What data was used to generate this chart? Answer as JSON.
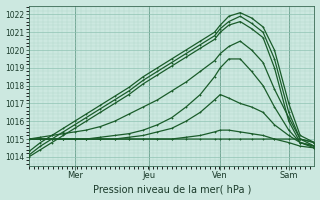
{
  "xlabel": "Pression niveau de la mer( hPa )",
  "bg_color": "#cce8e0",
  "grid_color_minor": "#b0d8cc",
  "grid_color_major": "#90c4b4",
  "line_color": "#1a5c2a",
  "ylim": [
    1013.5,
    1022.5
  ],
  "xlim": [
    0.0,
    1.0
  ],
  "yticks": [
    1014,
    1015,
    1016,
    1017,
    1018,
    1019,
    1020,
    1021,
    1022
  ],
  "day_labels": [
    "Mer",
    "Jeu",
    "Ven",
    "Sam"
  ],
  "day_positions": [
    0.16,
    0.42,
    0.67,
    0.91
  ],
  "series": [
    {
      "x": [
        0.0,
        0.04,
        0.08,
        0.12,
        0.16,
        0.2,
        0.25,
        0.3,
        0.35,
        0.4,
        0.45,
        0.5,
        0.55,
        0.6,
        0.65,
        0.67,
        0.7,
        0.74,
        0.78,
        0.82,
        0.86,
        0.91,
        0.95,
        1.0
      ],
      "y": [
        1014.3,
        1014.8,
        1015.2,
        1015.6,
        1016.0,
        1016.4,
        1016.9,
        1017.4,
        1017.9,
        1018.5,
        1019.0,
        1019.5,
        1020.0,
        1020.5,
        1021.0,
        1021.4,
        1021.9,
        1022.1,
        1021.8,
        1021.3,
        1020.0,
        1017.0,
        1015.2,
        1014.8
      ]
    },
    {
      "x": [
        0.0,
        0.04,
        0.08,
        0.12,
        0.16,
        0.2,
        0.25,
        0.3,
        0.35,
        0.4,
        0.45,
        0.5,
        0.55,
        0.6,
        0.65,
        0.67,
        0.7,
        0.74,
        0.78,
        0.82,
        0.86,
        0.91,
        0.95,
        1.0
      ],
      "y": [
        1014.1,
        1014.6,
        1015.0,
        1015.4,
        1015.8,
        1016.2,
        1016.7,
        1017.2,
        1017.7,
        1018.3,
        1018.8,
        1019.3,
        1019.8,
        1020.3,
        1020.8,
        1021.2,
        1021.6,
        1021.9,
        1021.5,
        1021.0,
        1019.5,
        1016.5,
        1015.0,
        1014.6
      ]
    },
    {
      "x": [
        0.0,
        0.04,
        0.08,
        0.12,
        0.16,
        0.2,
        0.25,
        0.3,
        0.35,
        0.4,
        0.45,
        0.5,
        0.55,
        0.6,
        0.65,
        0.67,
        0.7,
        0.74,
        0.78,
        0.82,
        0.86,
        0.91,
        0.95,
        1.0
      ],
      "y": [
        1014.0,
        1014.4,
        1014.8,
        1015.2,
        1015.6,
        1016.0,
        1016.5,
        1017.0,
        1017.5,
        1018.1,
        1018.6,
        1019.1,
        1019.6,
        1020.1,
        1020.6,
        1021.0,
        1021.4,
        1021.6,
        1021.2,
        1020.7,
        1019.0,
        1016.0,
        1014.8,
        1014.5
      ]
    },
    {
      "x": [
        0.0,
        0.04,
        0.08,
        0.12,
        0.16,
        0.2,
        0.25,
        0.3,
        0.35,
        0.4,
        0.45,
        0.5,
        0.55,
        0.6,
        0.65,
        0.67,
        0.7,
        0.74,
        0.78,
        0.82,
        0.86,
        0.91,
        0.95,
        1.0
      ],
      "y": [
        1015.0,
        1015.1,
        1015.2,
        1015.3,
        1015.4,
        1015.5,
        1015.7,
        1016.0,
        1016.4,
        1016.8,
        1017.2,
        1017.7,
        1018.2,
        1018.8,
        1019.4,
        1019.8,
        1020.2,
        1020.5,
        1020.0,
        1019.3,
        1017.8,
        1016.2,
        1015.0,
        1014.8
      ]
    },
    {
      "x": [
        0.0,
        0.04,
        0.08,
        0.12,
        0.16,
        0.2,
        0.25,
        0.3,
        0.35,
        0.4,
        0.45,
        0.5,
        0.55,
        0.6,
        0.65,
        0.67,
        0.7,
        0.74,
        0.78,
        0.82,
        0.86,
        0.91,
        0.95,
        1.0
      ],
      "y": [
        1015.0,
        1015.0,
        1015.0,
        1015.0,
        1015.0,
        1015.0,
        1015.1,
        1015.2,
        1015.3,
        1015.5,
        1015.8,
        1016.2,
        1016.8,
        1017.5,
        1018.5,
        1019.0,
        1019.5,
        1019.5,
        1018.8,
        1018.0,
        1016.8,
        1015.5,
        1014.8,
        1014.6
      ]
    },
    {
      "x": [
        0.0,
        0.04,
        0.08,
        0.12,
        0.16,
        0.2,
        0.25,
        0.3,
        0.35,
        0.4,
        0.45,
        0.5,
        0.55,
        0.6,
        0.65,
        0.67,
        0.7,
        0.74,
        0.78,
        0.82,
        0.86,
        0.91,
        0.95,
        1.0
      ],
      "y": [
        1015.0,
        1015.0,
        1015.0,
        1015.0,
        1015.0,
        1015.0,
        1015.0,
        1015.0,
        1015.1,
        1015.2,
        1015.4,
        1015.6,
        1016.0,
        1016.5,
        1017.2,
        1017.5,
        1017.3,
        1017.0,
        1016.8,
        1016.5,
        1015.8,
        1015.2,
        1014.8,
        1014.6
      ]
    },
    {
      "x": [
        0.0,
        0.04,
        0.08,
        0.12,
        0.16,
        0.2,
        0.25,
        0.3,
        0.35,
        0.4,
        0.45,
        0.5,
        0.55,
        0.6,
        0.65,
        0.67,
        0.7,
        0.74,
        0.78,
        0.82,
        0.86,
        0.91,
        0.95,
        1.0
      ],
      "y": [
        1015.0,
        1015.0,
        1015.0,
        1015.0,
        1015.0,
        1015.0,
        1015.0,
        1015.0,
        1015.0,
        1015.0,
        1015.0,
        1015.0,
        1015.1,
        1015.2,
        1015.4,
        1015.5,
        1015.5,
        1015.4,
        1015.3,
        1015.2,
        1015.0,
        1015.0,
        1015.0,
        1014.8
      ]
    },
    {
      "x": [
        0.0,
        0.04,
        0.08,
        0.12,
        0.16,
        0.2,
        0.25,
        0.3,
        0.35,
        0.4,
        0.45,
        0.5,
        0.55,
        0.6,
        0.65,
        0.67,
        0.7,
        0.74,
        0.78,
        0.82,
        0.86,
        0.91,
        0.95,
        1.0
      ],
      "y": [
        1015.0,
        1015.0,
        1015.0,
        1015.0,
        1015.0,
        1015.0,
        1015.0,
        1015.0,
        1015.0,
        1015.0,
        1015.0,
        1015.0,
        1015.0,
        1015.0,
        1015.0,
        1015.0,
        1015.0,
        1015.0,
        1015.0,
        1015.0,
        1015.0,
        1014.8,
        1014.6,
        1014.5
      ]
    }
  ]
}
